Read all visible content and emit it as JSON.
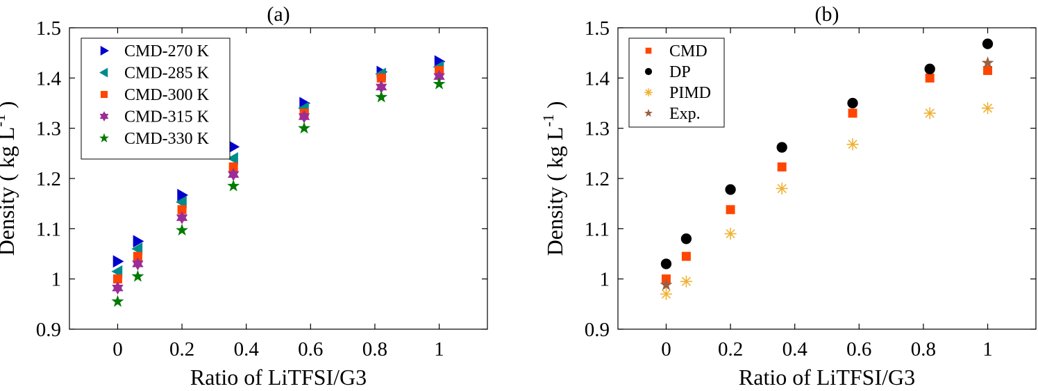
{
  "chart_data": [
    {
      "type": "scatter",
      "title": "(a)",
      "xlabel": "Ratio of LiTFSI/G3",
      "ylabel": "Density ( kg L",
      "ylabel_sup": "-1",
      "ylabel_close": ")",
      "xlim": [
        -0.15,
        1.15
      ],
      "ylim": [
        0.9,
        1.5
      ],
      "xticks": [
        0,
        0.2,
        0.4,
        0.6,
        0.8,
        1
      ],
      "xtick_labels": [
        "0",
        "0.2",
        "0.4",
        "0.6",
        "0.8",
        "1"
      ],
      "yticks": [
        0.9,
        1.0,
        1.1,
        1.2,
        1.3,
        1.4,
        1.5
      ],
      "ytick_labels": [
        "0.9",
        "1",
        "1.1",
        "1.2",
        "1.3",
        "1.4",
        "1.5"
      ],
      "legend_position": "top-left",
      "x": [
        0,
        0.0625,
        0.2,
        0.36,
        0.58,
        0.82,
        1.0
      ],
      "series": [
        {
          "name": "CMD-270 K",
          "marker": "triangle-right",
          "color": "#0000cd",
          "values": [
            1.035,
            1.075,
            1.167,
            1.263,
            1.35,
            1.412,
            1.433
          ]
        },
        {
          "name": "CMD-285 K",
          "marker": "triangle-left",
          "color": "#008b8b",
          "values": [
            1.015,
            1.06,
            1.153,
            1.24,
            1.34,
            1.408,
            1.422
          ]
        },
        {
          "name": "CMD-300 K",
          "marker": "square",
          "color": "#ff4500",
          "values": [
            1.0,
            1.045,
            1.138,
            1.223,
            1.33,
            1.4,
            1.415
          ]
        },
        {
          "name": "CMD-315 K",
          "marker": "hexagram",
          "color": "#9b2d96",
          "values": [
            0.982,
            1.03,
            1.122,
            1.208,
            1.323,
            1.382,
            1.403
          ]
        },
        {
          "name": "CMD-330 K",
          "marker": "pentagram",
          "color": "#007a00",
          "values": [
            0.955,
            1.005,
            1.097,
            1.185,
            1.3,
            1.362,
            1.388
          ]
        }
      ]
    },
    {
      "type": "scatter",
      "title": "(b)",
      "xlabel": "Ratio of LiTFSI/G3",
      "ylabel": "Density ( kg L",
      "ylabel_sup": "-1",
      "ylabel_close": ")",
      "xlim": [
        -0.15,
        1.15
      ],
      "ylim": [
        0.9,
        1.5
      ],
      "xticks": [
        0,
        0.2,
        0.4,
        0.6,
        0.8,
        1
      ],
      "xtick_labels": [
        "0",
        "0.2",
        "0.4",
        "0.6",
        "0.8",
        "1"
      ],
      "yticks": [
        0.9,
        1.0,
        1.1,
        1.2,
        1.3,
        1.4,
        1.5
      ],
      "ytick_labels": [
        "0.9",
        "1",
        "1.1",
        "1.2",
        "1.3",
        "1.4",
        "1.5"
      ],
      "legend_position": "top-left",
      "series": [
        {
          "name": "CMD",
          "marker": "square",
          "color": "#ff4500",
          "x": [
            0,
            0.0625,
            0.2,
            0.36,
            0.58,
            0.82,
            1.0
          ],
          "values": [
            1.0,
            1.045,
            1.138,
            1.223,
            1.33,
            1.4,
            1.415
          ]
        },
        {
          "name": "DP",
          "marker": "circle",
          "color": "#000000",
          "x": [
            0,
            0.0625,
            0.2,
            0.36,
            0.58,
            0.82,
            1.0
          ],
          "values": [
            1.03,
            1.08,
            1.178,
            1.262,
            1.35,
            1.418,
            1.468
          ]
        },
        {
          "name": "PIMD",
          "marker": "asterisk",
          "color": "#f0b030",
          "x": [
            0,
            0.0625,
            0.2,
            0.36,
            0.58,
            0.82,
            1.0
          ],
          "values": [
            0.97,
            0.995,
            1.09,
            1.18,
            1.268,
            1.33,
            1.34
          ]
        },
        {
          "name": "Exp.",
          "marker": "pentagram",
          "color": "#9a5f3f",
          "x": [
            0,
            1.0
          ],
          "values": [
            0.988,
            1.43
          ]
        }
      ]
    }
  ]
}
